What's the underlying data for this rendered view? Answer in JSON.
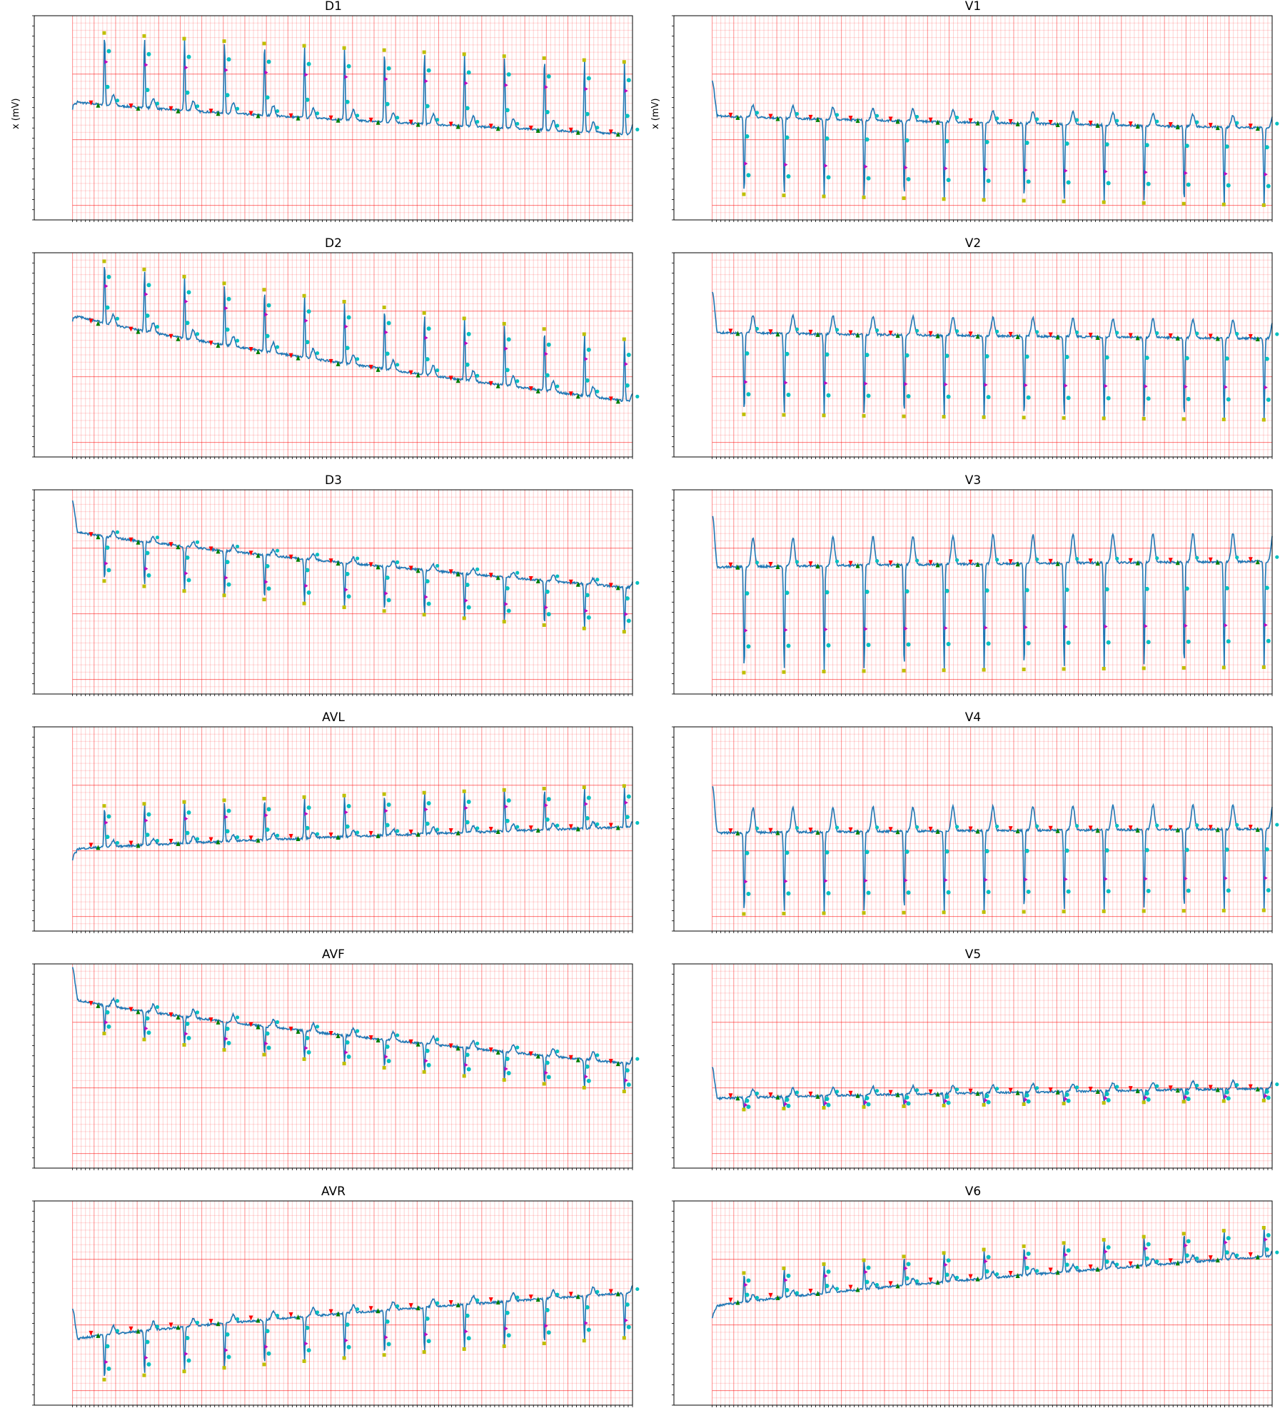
{
  "chart_data": {
    "type": "line",
    "ylabel": "x (mV)",
    "grid": true,
    "grid_color": "#ff0000",
    "trace_color": "#1f77b4",
    "marker_colors": {
      "p_on": "#ff0000",
      "p_off": "#008000",
      "qrs_on": "#00bfbf",
      "r_peak": "#bfbf00",
      "qrs_mid": "#bf00bf"
    },
    "leads": [
      {
        "name": "D1",
        "col": 0,
        "row": 0,
        "show_ylabel": true,
        "beats": 14,
        "baseline": [
          0.58,
          0.42
        ],
        "amplitude": 0.35,
        "polarity": 1,
        "t_wave": 0.05,
        "noise": 0.01
      },
      {
        "name": "D2",
        "col": 0,
        "row": 1,
        "show_ylabel": false,
        "beats": 14,
        "baseline": [
          0.7,
          0.27
        ],
        "amplitude": 0.3,
        "polarity": 1,
        "t_wave": 0.05,
        "noise": 0.01
      },
      {
        "name": "D3",
        "col": 0,
        "row": 2,
        "show_ylabel": false,
        "beats": 14,
        "baseline": [
          0.8,
          0.52
        ],
        "amplitude": 0.22,
        "polarity": -1,
        "t_wave": 0.03,
        "noise": 0.01
      },
      {
        "name": "AVL",
        "col": 0,
        "row": 3,
        "show_ylabel": false,
        "beats": 14,
        "baseline": [
          0.4,
          0.51
        ],
        "amplitude": 0.2,
        "polarity": 1,
        "t_wave": 0.03,
        "noise": 0.01
      },
      {
        "name": "AVF",
        "col": 0,
        "row": 4,
        "show_ylabel": false,
        "beats": 14,
        "baseline": [
          0.83,
          0.51
        ],
        "amplitude": 0.14,
        "polarity": -1,
        "t_wave": 0.04,
        "noise": 0.01
      },
      {
        "name": "AVR",
        "col": 0,
        "row": 5,
        "show_ylabel": false,
        "beats": 14,
        "baseline": [
          0.32,
          0.55
        ],
        "amplitude": 0.22,
        "polarity": -1,
        "t_wave": 0.04,
        "noise": 0.01
      },
      {
        "name": "V1",
        "col": 1,
        "row": 0,
        "show_ylabel": true,
        "beats": 14,
        "baseline": [
          0.51,
          0.45
        ],
        "amplitude": 0.38,
        "polarity": -1,
        "t_wave": 0.06,
        "noise": 0.01
      },
      {
        "name": "V2",
        "col": 1,
        "row": 1,
        "show_ylabel": false,
        "beats": 14,
        "baseline": [
          0.61,
          0.58
        ],
        "amplitude": 0.4,
        "polarity": -1,
        "t_wave": 0.09,
        "noise": 0.01
      },
      {
        "name": "V3",
        "col": 1,
        "row": 2,
        "show_ylabel": false,
        "beats": 14,
        "baseline": [
          0.62,
          0.65
        ],
        "amplitude": 0.52,
        "polarity": -1,
        "t_wave": 0.14,
        "noise": 0.01
      },
      {
        "name": "V4",
        "col": 1,
        "row": 3,
        "show_ylabel": false,
        "beats": 14,
        "baseline": [
          0.48,
          0.5
        ],
        "amplitude": 0.4,
        "polarity": -1,
        "t_wave": 0.12,
        "noise": 0.01
      },
      {
        "name": "V5",
        "col": 1,
        "row": 4,
        "show_ylabel": false,
        "beats": 14,
        "baseline": [
          0.34,
          0.39
        ],
        "amplitude": 0.06,
        "polarity": -1,
        "t_wave": 0.04,
        "noise": 0.01
      },
      {
        "name": "V6",
        "col": 1,
        "row": 5,
        "show_ylabel": false,
        "beats": 14,
        "baseline": [
          0.48,
          0.73
        ],
        "amplitude": 0.14,
        "polarity": 1,
        "t_wave": 0.03,
        "noise": 0.01
      }
    ]
  }
}
